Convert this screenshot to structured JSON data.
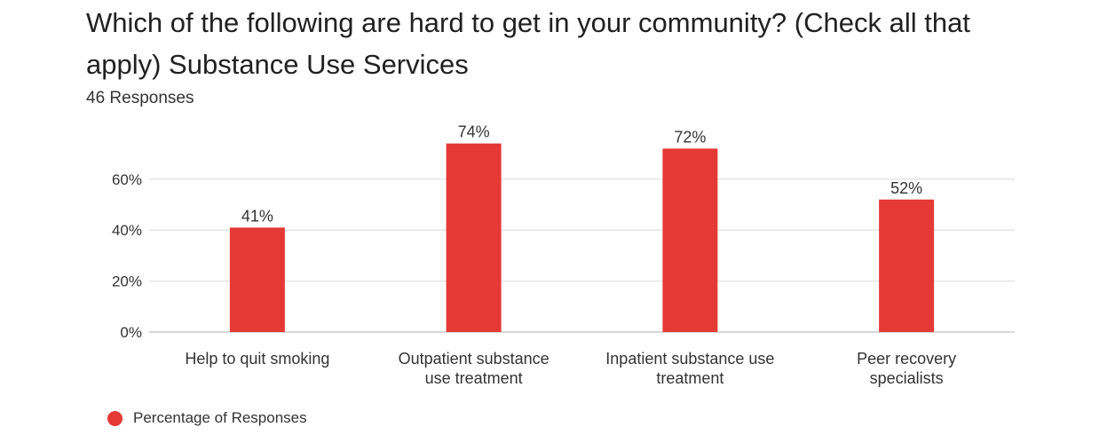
{
  "chart_data": {
    "type": "bar",
    "title": "Which of the following are hard to get in your community? (Check all that apply) Substance Use Services",
    "subtitle": "46 Responses",
    "categories": [
      [
        "Help to quit smoking"
      ],
      [
        "Outpatient substance",
        "use treatment"
      ],
      [
        "Inpatient substance use",
        "treatment"
      ],
      [
        "Peer recovery",
        "specialists"
      ]
    ],
    "series": [
      {
        "name": "Percentage of Responses",
        "values": [
          41,
          74,
          72,
          52
        ],
        "labels": [
          "41%",
          "74%",
          "72%",
          "52%"
        ],
        "color": "#e53935"
      }
    ],
    "ylim": [
      0,
      80
    ],
    "yticks": [
      {
        "value": 0,
        "label": "0%"
      },
      {
        "value": 20,
        "label": "20%"
      },
      {
        "value": 40,
        "label": "40%"
      },
      {
        "value": 60,
        "label": "60%"
      }
    ],
    "grid": true,
    "legend_position": "bottom-left"
  }
}
